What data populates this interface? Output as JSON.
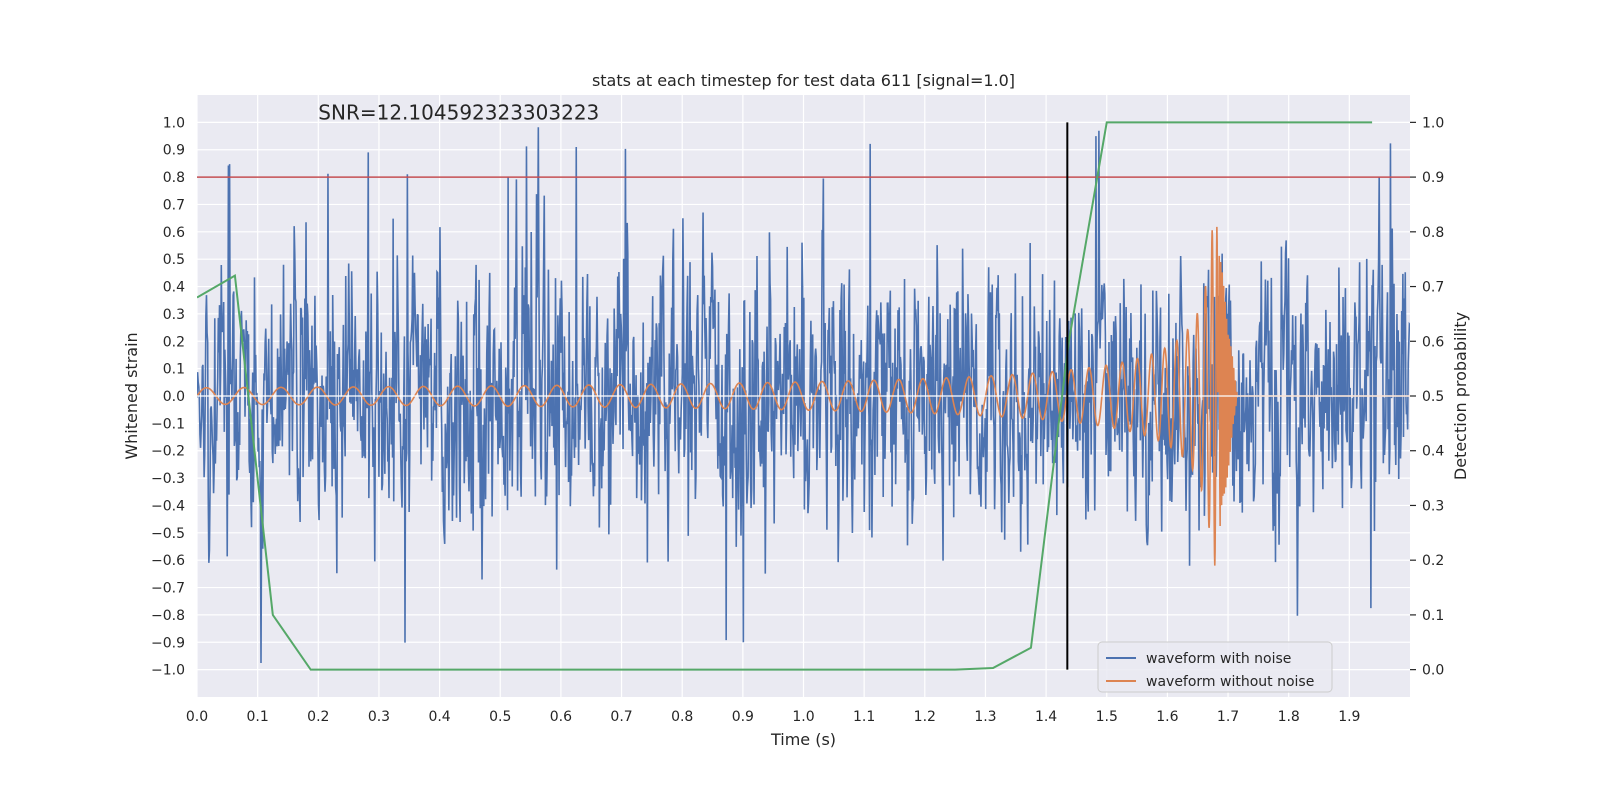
{
  "chart_data": {
    "type": "line",
    "title": "stats at each timestep for test data 611 [signal=1.0]",
    "xlabel": "Time (s)",
    "ylabel": "Whitened strain",
    "y2label": "Detection probability",
    "xlim": [
      0.0,
      2.0
    ],
    "ylim": [
      -1.1,
      1.1
    ],
    "y2lim": [
      -0.05,
      1.05
    ],
    "x_ticks": [
      0.0,
      0.1,
      0.2,
      0.3,
      0.4,
      0.5,
      0.6,
      0.7,
      0.8,
      0.9,
      1.0,
      1.1,
      1.2,
      1.3,
      1.4,
      1.5,
      1.6,
      1.7,
      1.8,
      1.9
    ],
    "y_ticks": [
      -1.0,
      -0.9,
      -0.8,
      -0.7,
      -0.6,
      -0.5,
      -0.4,
      -0.3,
      -0.2,
      -0.1,
      0.0,
      0.1,
      0.2,
      0.3,
      0.4,
      0.5,
      0.6,
      0.7,
      0.8,
      0.9,
      1.0
    ],
    "y2_ticks": [
      0.0,
      0.1,
      0.2,
      0.3,
      0.4,
      0.5,
      0.6,
      0.7,
      0.8,
      0.9,
      1.0
    ],
    "grid": true,
    "annotation": "SNR=12.104592323303223",
    "annotation_position": {
      "x": 0.2,
      "y": 1.01
    },
    "threshold_line": {
      "y": 0.8,
      "color": "#c44e52"
    },
    "zero_line": {
      "y": 0.0,
      "color": "#ffffff"
    },
    "vertical_line": {
      "x": 1.435,
      "y_range": [
        -1.0,
        1.0
      ],
      "color": "#000000"
    },
    "legend_position": "lower-right",
    "series": [
      {
        "name": "waveform with noise",
        "color": "#4c72b0",
        "axis": "left",
        "description": "whitened noisy strain, sampled densely over 0–2 s, mostly within ±0.5 with spikes to about ±1.0",
        "x_range": [
          0.0,
          2.0
        ],
        "samples": 2048
      },
      {
        "name": "waveform without noise",
        "color": "#dd8452",
        "axis": "left",
        "description": "chirp signal with rising frequency and amplitude, peaking near 1.68–1.69 s then ringing down to zero",
        "x_range": [
          0.0,
          2.0
        ],
        "samples": 2048
      },
      {
        "name": "",
        "color": "#55a868",
        "axis": "right",
        "x": [
          0.0,
          0.0625,
          0.125,
          0.1875,
          0.25,
          0.3125,
          0.375,
          0.4375,
          0.5,
          0.5625,
          0.625,
          0.6875,
          0.75,
          0.8125,
          0.875,
          0.9375,
          1.0,
          1.0625,
          1.125,
          1.1875,
          1.25,
          1.3125,
          1.375,
          1.4375,
          1.5,
          1.5625,
          1.625,
          1.6875,
          1.75,
          1.8125,
          1.875,
          1.9375
        ],
        "values": [
          0.68,
          0.72,
          0.1,
          0.0,
          0.0,
          0.0,
          0.0,
          0.0,
          0.0,
          0.0,
          0.0,
          0.0,
          0.0,
          0.0,
          0.0,
          0.0,
          0.0,
          0.0,
          0.0,
          0.0,
          0.0,
          0.003,
          0.04,
          0.6,
          1.0,
          1.0,
          1.0,
          1.0,
          1.0,
          1.0,
          1.0,
          1.0
        ]
      }
    ]
  }
}
